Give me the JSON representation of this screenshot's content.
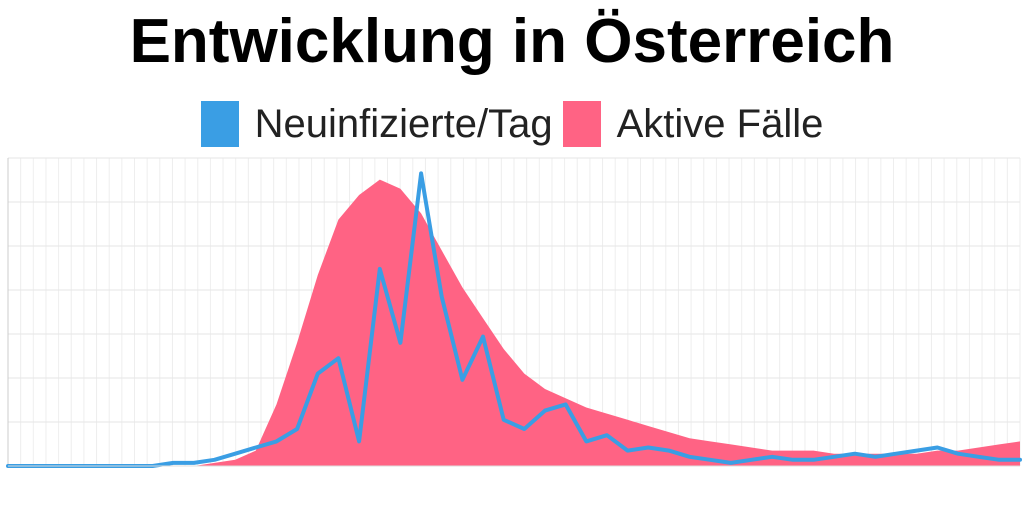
{
  "chart_data": {
    "type": "area",
    "title": "Entwicklung in Österreich",
    "xlabel": "",
    "ylabel": "",
    "ylim": [
      0,
      100
    ],
    "grid": true,
    "legend_position": "top-center",
    "colors": {
      "new_cases": "#3a9ee4",
      "active_cases": "#ff6384",
      "grid": "#e6e6e6"
    },
    "x": [
      0,
      5,
      10,
      15,
      20,
      25,
      30,
      35,
      40,
      45,
      50,
      55,
      60,
      65,
      70,
      75,
      80,
      85,
      90,
      95,
      100,
      105,
      110,
      115,
      120,
      125,
      130,
      135,
      140,
      145,
      150,
      155,
      160,
      165,
      170,
      175,
      180,
      185,
      190,
      195,
      200,
      205,
      210,
      215,
      220,
      225,
      230,
      235,
      240,
      245
    ],
    "series": [
      {
        "name": "Neuinfizierte/Tag",
        "type": "line",
        "values": [
          0,
          0,
          0,
          0,
          0,
          0,
          0,
          0,
          1,
          1,
          2,
          4,
          6,
          8,
          12,
          30,
          35,
          8,
          64,
          40,
          95,
          55,
          28,
          42,
          15,
          12,
          18,
          20,
          8,
          10,
          5,
          6,
          5,
          3,
          2,
          1,
          2,
          3,
          2,
          2,
          3,
          4,
          3,
          4,
          5,
          6,
          4,
          3,
          2,
          2
        ]
      },
      {
        "name": "Aktive Fälle",
        "type": "area",
        "values": [
          0,
          0,
          0,
          0,
          0,
          0,
          0,
          0,
          0,
          0,
          1,
          2,
          5,
          20,
          40,
          62,
          80,
          88,
          93,
          90,
          82,
          70,
          58,
          48,
          38,
          30,
          25,
          22,
          19,
          17,
          15,
          13,
          11,
          9,
          8,
          7,
          6,
          5,
          5,
          5,
          4,
          4,
          4,
          4,
          4,
          5,
          5,
          6,
          7,
          8
        ]
      }
    ]
  }
}
